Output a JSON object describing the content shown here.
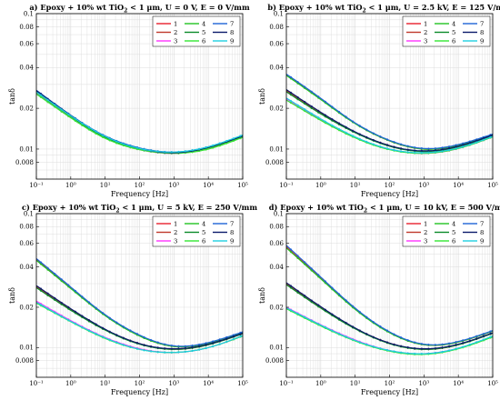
{
  "colors": {
    "series": [
      "#e8202c",
      "#c0392b",
      "#ff33ff",
      "#22c322",
      "#0a8a2a",
      "#33e633",
      "#1e64d6",
      "#0a1a6a",
      "#1ecfe0"
    ],
    "background": "#ffffff",
    "grid": "#d9d9d9",
    "axis": "#000000"
  },
  "chart_data": [
    {
      "type": "line",
      "title_parts": [
        "a) Epoxy + 10% wt TiO",
        "2",
        " < 1 μm, U = 0 V, E = 0 V/mm"
      ],
      "xlabel": "Frequency [Hz]",
      "ylabel": "tanδ",
      "xscale": "log",
      "yscale": "log",
      "xlim": [
        0.1,
        100000
      ],
      "ylim": [
        0.006,
        0.1
      ],
      "xticks": [
        "10⁻¹",
        "10⁰",
        "10¹",
        "10²",
        "10³",
        "10⁴",
        "10⁵"
      ],
      "yticks": [
        {
          "v": 0.008,
          "label": "0.008"
        },
        {
          "v": 0.01,
          "label": "0.01"
        },
        {
          "v": 0.02,
          "label": "0.02"
        },
        {
          "v": 0.04,
          "label": "0.04"
        },
        {
          "v": 0.06,
          "label": "0.06"
        },
        {
          "v": 0.08,
          "label": "0.08"
        },
        {
          "v": 0.1,
          "label": "0.1"
        }
      ],
      "grid": true,
      "legend": "top-right",
      "x": [
        0.1,
        1,
        10,
        100,
        1000,
        10000,
        100000
      ],
      "series": [
        {
          "name": "1",
          "values": [
            0.0265,
            0.0175,
            0.0123,
            0.0101,
            0.0094,
            0.0103,
            0.0125
          ]
        },
        {
          "name": "2",
          "values": [
            0.0268,
            0.0176,
            0.0124,
            0.0101,
            0.0094,
            0.0103,
            0.0125
          ]
        },
        {
          "name": "3",
          "values": [
            0.0258,
            0.0171,
            0.0121,
            0.0099,
            0.0093,
            0.0101,
            0.0123
          ]
        },
        {
          "name": "4",
          "values": [
            0.0262,
            0.0174,
            0.0122,
            0.01,
            0.0094,
            0.0102,
            0.0124
          ]
        },
        {
          "name": "5",
          "values": [
            0.0266,
            0.0175,
            0.0123,
            0.0101,
            0.0094,
            0.0103,
            0.0125
          ]
        },
        {
          "name": "6",
          "values": [
            0.0255,
            0.017,
            0.012,
            0.0099,
            0.0093,
            0.01,
            0.0122
          ]
        },
        {
          "name": "7",
          "values": [
            0.0272,
            0.0178,
            0.0125,
            0.0102,
            0.0095,
            0.0104,
            0.0126
          ]
        },
        {
          "name": "8",
          "values": [
            0.027,
            0.0177,
            0.0124,
            0.0101,
            0.0094,
            0.0103,
            0.0125
          ]
        },
        {
          "name": "9",
          "values": [
            0.0264,
            0.0176,
            0.0124,
            0.0101,
            0.0095,
            0.0104,
            0.0127
          ]
        }
      ]
    },
    {
      "type": "line",
      "title_parts": [
        "b) Epoxy + 10% wt TiO",
        "2",
        " < 1 μm, U = 2.5 kV, E = 125 V/mm"
      ],
      "xlabel": "Frequency [Hz]",
      "ylabel": "tanδ",
      "xscale": "log",
      "yscale": "log",
      "xlim": [
        0.1,
        100000
      ],
      "ylim": [
        0.006,
        0.1
      ],
      "xticks": [
        "10⁻¹",
        "10⁰",
        "10¹",
        "10²",
        "10³",
        "10⁴",
        "10⁵"
      ],
      "yticks": [
        {
          "v": 0.008,
          "label": "0.008"
        },
        {
          "v": 0.01,
          "label": "0.01"
        },
        {
          "v": 0.02,
          "label": "0.02"
        },
        {
          "v": 0.04,
          "label": "0.04"
        },
        {
          "v": 0.06,
          "label": "0.06"
        },
        {
          "v": 0.08,
          "label": "0.08"
        },
        {
          "v": 0.1,
          "label": "0.1"
        }
      ],
      "grid": true,
      "legend": "top-right",
      "x": [
        0.1,
        1,
        10,
        100,
        1000,
        10000,
        100000
      ],
      "series": [
        {
          "name": "1",
          "values": [
            0.0355,
            0.0235,
            0.0155,
            0.0115,
            0.01,
            0.0107,
            0.0128
          ]
        },
        {
          "name": "2",
          "values": [
            0.027,
            0.0185,
            0.0133,
            0.0106,
            0.0096,
            0.0104,
            0.0126
          ]
        },
        {
          "name": "3",
          "values": [
            0.0235,
            0.0165,
            0.0122,
            0.01,
            0.0093,
            0.0101,
            0.0123
          ]
        },
        {
          "name": "4",
          "values": [
            0.035,
            0.0232,
            0.0154,
            0.0115,
            0.01,
            0.0107,
            0.0128
          ]
        },
        {
          "name": "5",
          "values": [
            0.0265,
            0.0182,
            0.0132,
            0.0105,
            0.0096,
            0.0104,
            0.0126
          ]
        },
        {
          "name": "6",
          "values": [
            0.023,
            0.0163,
            0.0121,
            0.0099,
            0.0093,
            0.0101,
            0.0123
          ]
        },
        {
          "name": "7",
          "values": [
            0.0358,
            0.0237,
            0.0156,
            0.0116,
            0.0101,
            0.0108,
            0.0129
          ]
        },
        {
          "name": "8",
          "values": [
            0.0275,
            0.0187,
            0.0134,
            0.0106,
            0.0097,
            0.0105,
            0.0127
          ]
        },
        {
          "name": "9",
          "values": [
            0.0238,
            0.0167,
            0.0123,
            0.01,
            0.0094,
            0.0102,
            0.0124
          ]
        }
      ]
    },
    {
      "type": "line",
      "title_parts": [
        "c) Epoxy + 10% wt TiO",
        "2",
        " < 1 μm, U = 5 kV, E = 250 V/mm"
      ],
      "xlabel": "Frequency [Hz]",
      "ylabel": "tanδ",
      "xscale": "log",
      "yscale": "log",
      "xlim": [
        0.1,
        100000
      ],
      "ylim": [
        0.006,
        0.1
      ],
      "xticks": [
        "10⁻¹",
        "10⁰",
        "10¹",
        "10²",
        "10³",
        "10⁴",
        "10⁵"
      ],
      "yticks": [
        {
          "v": 0.008,
          "label": "0.008"
        },
        {
          "v": 0.01,
          "label": "0.01"
        },
        {
          "v": 0.02,
          "label": "0.02"
        },
        {
          "v": 0.04,
          "label": "0.04"
        },
        {
          "v": 0.06,
          "label": "0.06"
        },
        {
          "v": 0.08,
          "label": "0.08"
        },
        {
          "v": 0.1,
          "label": "0.1"
        }
      ],
      "grid": true,
      "legend": "top-right",
      "x": [
        0.1,
        1,
        10,
        100,
        1000,
        10000,
        100000
      ],
      "series": [
        {
          "name": "1",
          "values": [
            0.0455,
            0.028,
            0.0175,
            0.0123,
            0.0102,
            0.0108,
            0.013
          ]
        },
        {
          "name": "2",
          "values": [
            0.0285,
            0.0193,
            0.0136,
            0.0107,
            0.0097,
            0.0105,
            0.0127
          ]
        },
        {
          "name": "3",
          "values": [
            0.0222,
            0.0159,
            0.0119,
            0.0098,
            0.0092,
            0.01,
            0.0122
          ]
        },
        {
          "name": "4",
          "values": [
            0.0448,
            0.0276,
            0.0173,
            0.0122,
            0.0102,
            0.0108,
            0.013
          ]
        },
        {
          "name": "5",
          "values": [
            0.028,
            0.019,
            0.0135,
            0.0106,
            0.0097,
            0.0105,
            0.0127
          ]
        },
        {
          "name": "6",
          "values": [
            0.0215,
            0.0156,
            0.0117,
            0.0097,
            0.0092,
            0.01,
            0.0122
          ]
        },
        {
          "name": "7",
          "values": [
            0.0462,
            0.0283,
            0.0176,
            0.0124,
            0.0103,
            0.0109,
            0.0131
          ]
        },
        {
          "name": "8",
          "values": [
            0.029,
            0.0195,
            0.0137,
            0.0107,
            0.0098,
            0.0106,
            0.0128
          ]
        },
        {
          "name": "9",
          "values": [
            0.0218,
            0.0157,
            0.0118,
            0.0097,
            0.0092,
            0.01,
            0.0123
          ]
        }
      ]
    },
    {
      "type": "line",
      "title_parts": [
        "d) Epoxy + 10% wt TiO",
        "2",
        " < 1 μm, U = 10 kV, E = 500 V/mm"
      ],
      "xlabel": "Frequency [Hz]",
      "ylabel": "tanδ",
      "xscale": "log",
      "yscale": "log",
      "xlim": [
        0.1,
        100000
      ],
      "ylim": [
        0.006,
        0.1
      ],
      "xticks": [
        "10⁻¹",
        "10⁰",
        "10¹",
        "10²",
        "10³",
        "10⁴",
        "10⁵"
      ],
      "yticks": [
        {
          "v": 0.008,
          "label": "0.008"
        },
        {
          "v": 0.01,
          "label": "0.01"
        },
        {
          "v": 0.02,
          "label": "0.02"
        },
        {
          "v": 0.04,
          "label": "0.04"
        },
        {
          "v": 0.06,
          "label": "0.06"
        },
        {
          "v": 0.08,
          "label": "0.08"
        },
        {
          "v": 0.1,
          "label": "0.1"
        }
      ],
      "grid": true,
      "legend": "top-right",
      "x": [
        0.1,
        1,
        10,
        100,
        1000,
        10000,
        100000
      ],
      "series": [
        {
          "name": "1",
          "values": [
            0.0565,
            0.033,
            0.0195,
            0.013,
            0.0105,
            0.011,
            0.0133
          ]
        },
        {
          "name": "2",
          "values": [
            0.03,
            0.02,
            0.0139,
            0.0108,
            0.0097,
            0.0105,
            0.0128
          ]
        },
        {
          "name": "3",
          "values": [
            0.02,
            0.0148,
            0.0114,
            0.0095,
            0.009,
            0.0099,
            0.0121
          ]
        },
        {
          "name": "4",
          "values": [
            0.0555,
            0.0326,
            0.0193,
            0.0129,
            0.0105,
            0.011,
            0.0133
          ]
        },
        {
          "name": "5",
          "values": [
            0.0295,
            0.0197,
            0.0138,
            0.0107,
            0.0097,
            0.0105,
            0.0128
          ]
        },
        {
          "name": "6",
          "values": [
            0.0195,
            0.0145,
            0.0112,
            0.0094,
            0.0089,
            0.0098,
            0.012
          ]
        },
        {
          "name": "7",
          "values": [
            0.058,
            0.0336,
            0.0197,
            0.0131,
            0.0106,
            0.0111,
            0.0134
          ]
        },
        {
          "name": "8",
          "values": [
            0.0305,
            0.0202,
            0.014,
            0.0108,
            0.0098,
            0.0106,
            0.0129
          ]
        },
        {
          "name": "9",
          "values": [
            0.0198,
            0.0147,
            0.0113,
            0.0095,
            0.009,
            0.0099,
            0.0122
          ]
        }
      ]
    }
  ]
}
